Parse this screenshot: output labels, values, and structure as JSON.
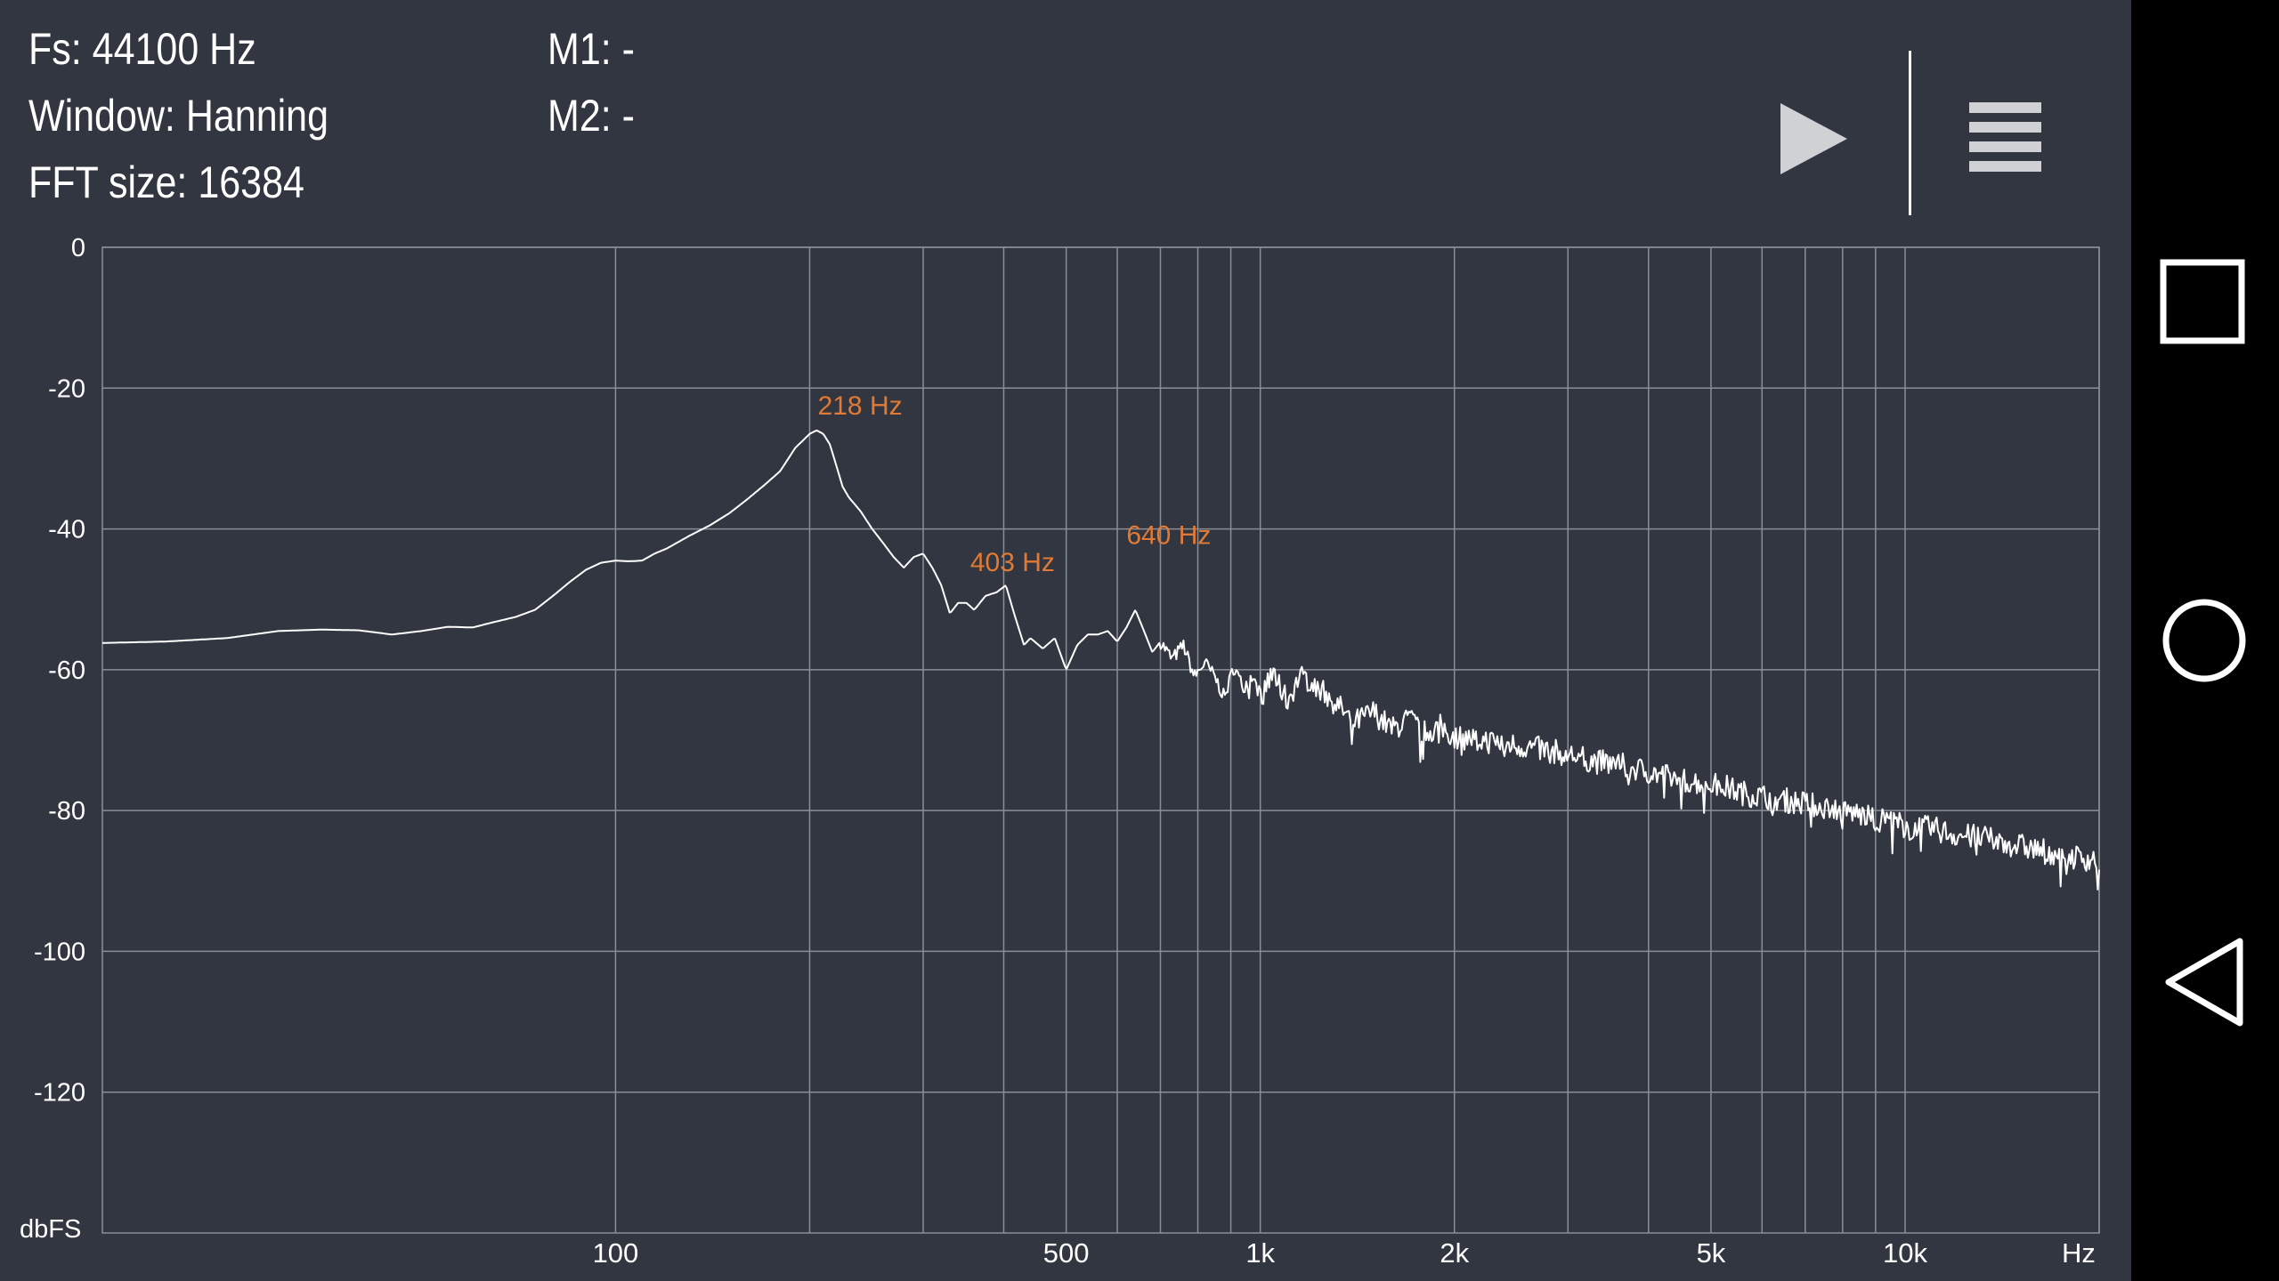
{
  "header": {
    "fs": "Fs: 44100 Hz",
    "window": "Window: Hanning",
    "fft_size": "FFT size: 16384",
    "m1": "M1: -",
    "m2": "M2: -"
  },
  "toolbar": {
    "play_icon": "play-icon",
    "menu_icon": "menu-icon"
  },
  "navbar": {
    "recents_icon": "square-icon",
    "home_icon": "circle-icon",
    "back_icon": "triangle-back-icon"
  },
  "colors": {
    "background": "#313640",
    "grid": "#8a8f97",
    "trace": "#ffffff",
    "peak_label": "#e07a36",
    "navbar": "#000000"
  },
  "chart_data": {
    "type": "line",
    "x_scale": "log",
    "xlim": [
      16,
      20000
    ],
    "ylim": [
      -140,
      0
    ],
    "ylabel": "dbFS",
    "xunit": "Hz",
    "grid": true,
    "y_ticks": [
      {
        "value": 0,
        "label": "0"
      },
      {
        "value": -20,
        "label": "-20"
      },
      {
        "value": -40,
        "label": "-40"
      },
      {
        "value": -60,
        "label": "-60"
      },
      {
        "value": -80,
        "label": "-80"
      },
      {
        "value": -100,
        "label": "-100"
      },
      {
        "value": -120,
        "label": "-120"
      }
    ],
    "x_gridlines": [
      100,
      200,
      300,
      400,
      500,
      600,
      700,
      800,
      900,
      1000,
      2000,
      3000,
      4000,
      5000,
      6000,
      7000,
      8000,
      9000,
      10000,
      20000
    ],
    "x_ticks": [
      {
        "value": 100,
        "label": "100"
      },
      {
        "value": 500,
        "label": "500"
      },
      {
        "value": 1000,
        "label": "1k"
      },
      {
        "value": 2000,
        "label": "2k"
      },
      {
        "value": 5000,
        "label": "5k"
      },
      {
        "value": 10000,
        "label": "10k"
      }
    ],
    "peaks": [
      {
        "freq": 218,
        "db": -26,
        "label": "218 Hz"
      },
      {
        "freq": 403,
        "db": -48,
        "label": "403 Hz"
      },
      {
        "freq": 640,
        "db": -51,
        "label": "640 Hz"
      }
    ],
    "series": [
      {
        "x": [
          16,
          20,
          25,
          30,
          35,
          40,
          45,
          50,
          55,
          60,
          65,
          70,
          75,
          80,
          85,
          90,
          95,
          100,
          105,
          110,
          115,
          120,
          130,
          140,
          150,
          160,
          170,
          180,
          190,
          200,
          205,
          210,
          215,
          220,
          225,
          230,
          240,
          250,
          260,
          270,
          280,
          290,
          300,
          310,
          320,
          330,
          340,
          350,
          360,
          375,
          390,
          403,
          415,
          430,
          440,
          460,
          480,
          500,
          520,
          540,
          560,
          580,
          600,
          620,
          640,
          660,
          680,
          700,
          730,
          760,
          790,
          820,
          850,
          880,
          910,
          940,
          970,
          1000,
          1050,
          1100,
          1150,
          1200,
          1300,
          1400,
          1500,
          1600,
          1700,
          1800,
          1900,
          2000,
          2200,
          2400,
          2600,
          2800,
          3000,
          3300,
          3600,
          4000,
          4400,
          4800,
          5200,
          5600,
          6000,
          6500,
          7000,
          7500,
          8000,
          8500,
          9000,
          9500,
          10000,
          11000,
          12000,
          13000,
          14000,
          15000,
          16000,
          17000,
          18000,
          19000,
          20000
        ],
        "y": [
          -56.2,
          -56.0,
          -55.5,
          -54.5,
          -54.3,
          -54.4,
          -55.0,
          -54.5,
          -53.9,
          -54.0,
          -53.2,
          -52.5,
          -51.5,
          -49.5,
          -47.5,
          -45.8,
          -44.8,
          -44.5,
          -44.6,
          -44.5,
          -43.5,
          -42.8,
          -41.0,
          -39.5,
          -37.8,
          -35.8,
          -33.8,
          -31.8,
          -28.5,
          -26.5,
          -26.0,
          -26.5,
          -28.0,
          -31.0,
          -34.0,
          -35.5,
          -37.5,
          -40.0,
          -42.0,
          -44.0,
          -45.5,
          -44.0,
          -43.5,
          -45.5,
          -48.0,
          -52.0,
          -50.5,
          -50.5,
          -51.5,
          -49.5,
          -49.0,
          -48.0,
          -52.0,
          -56.5,
          -55.5,
          -57.0,
          -55.5,
          -60.0,
          -56.5,
          -55.0,
          -55.0,
          -54.5,
          -56.0,
          -54.0,
          -51.5,
          -54.5,
          -57.5,
          -56.0,
          -58.5,
          -56.5,
          -61.0,
          -59.0,
          -61.0,
          -64.0,
          -59.5,
          -62.5,
          -61.0,
          -63.5,
          -60.5,
          -64.5,
          -61.0,
          -61.5,
          -64.5,
          -67.5,
          -66.0,
          -68.5,
          -67.0,
          -69.0,
          -68.0,
          -69.5,
          -70.0,
          -70.5,
          -71.0,
          -71.5,
          -72.0,
          -73.0,
          -73.5,
          -74.5,
          -75.5,
          -76.0,
          -76.5,
          -77.5,
          -78.0,
          -78.5,
          -79.0,
          -79.5,
          -80.0,
          -80.5,
          -81.5,
          -81.0,
          -82.5,
          -82.5,
          -83.5,
          -83.8,
          -84.5,
          -85.0,
          -85.5,
          -86.0,
          -86.5,
          -86.8,
          -87.0
        ]
      }
    ]
  }
}
